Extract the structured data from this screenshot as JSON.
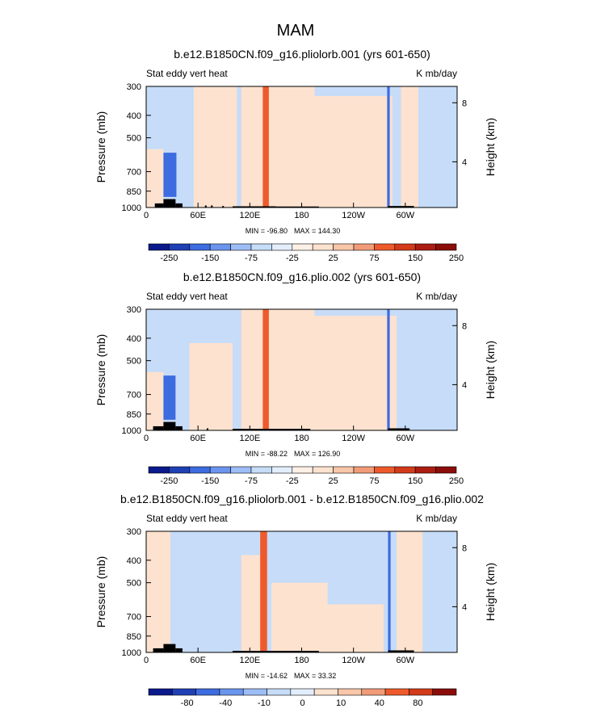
{
  "figure": {
    "season": "MAM",
    "colors": {
      "blue_dark": "#0a1a8c",
      "blue_mid": "#3d6be0",
      "blue_light": "#c6dcf8",
      "red_light": "#fde2cf",
      "red_mid": "#ee5a2c",
      "red_dark": "#8b0d0a",
      "land": "#000000"
    }
  },
  "chart_data": [
    {
      "type": "heatmap",
      "title": "b.e12.B1850CN.f09_g16.pliolorb.001 (yrs 601-650)",
      "left_label": "Stat eddy vert heat",
      "right_label": "K mb/day",
      "ylabel": "Pressure (mb)",
      "y2label": "Height (km)",
      "yticks": [
        "300",
        "400",
        "500",
        "700",
        "850",
        "1000"
      ],
      "y2ticks": [
        "8",
        "4"
      ],
      "xticks": [
        "0",
        "60E",
        "120E",
        "180",
        "120W",
        "60W"
      ],
      "xlim": [
        0,
        360
      ],
      "ylim": [
        1000,
        300
      ],
      "min_text": "MIN = -96.80",
      "max_text": "MAX = 144.30",
      "colorbar_labels": [
        "-250",
        "-150",
        "-75",
        "-25",
        "25",
        "75",
        "150",
        "250"
      ],
      "shading": [
        {
          "lon": [
            0,
            360
          ],
          "p": [
            300,
            1000
          ],
          "cls": "blue_light"
        },
        {
          "lon": [
            55,
            105
          ],
          "p": [
            300,
            1000
          ],
          "cls": "red_light"
        },
        {
          "lon": [
            110,
            195
          ],
          "p": [
            300,
            1000
          ],
          "cls": "red_light"
        },
        {
          "lon": [
            150,
            285
          ],
          "p": [
            330,
            1000
          ],
          "cls": "red_light"
        },
        {
          "lon": [
            295,
            315
          ],
          "p": [
            300,
            1000
          ],
          "cls": "red_light"
        },
        {
          "lon": [
            0,
            20
          ],
          "p": [
            560,
            1000
          ],
          "cls": "red_light"
        },
        {
          "lon": [
            20,
            35
          ],
          "p": [
            580,
            900
          ],
          "cls": "blue_mid"
        },
        {
          "lon": [
            135,
            142
          ],
          "p": [
            300,
            1000
          ],
          "cls": "red_mid"
        },
        {
          "lon": [
            279,
            282
          ],
          "p": [
            300,
            1000
          ],
          "cls": "blue_mid"
        }
      ],
      "land": [
        {
          "lon": [
            10,
            20
          ],
          "p": [
            960,
            1000
          ]
        },
        {
          "lon": [
            20,
            34
          ],
          "p": [
            920,
            1000
          ]
        },
        {
          "lon": [
            34,
            42
          ],
          "p": [
            960,
            1000
          ]
        },
        {
          "lon": [
            68,
            70
          ],
          "p": [
            980,
            1000
          ]
        },
        {
          "lon": [
            75,
            77
          ],
          "p": [
            980,
            1000
          ]
        },
        {
          "lon": [
            88,
            90
          ],
          "p": [
            985,
            1000
          ]
        },
        {
          "lon": [
            100,
            150
          ],
          "p": [
            988,
            1000
          ]
        },
        {
          "lon": [
            150,
            200
          ],
          "p": [
            990,
            1000
          ]
        },
        {
          "lon": [
            280,
            310
          ],
          "p": [
            985,
            1000
          ]
        }
      ]
    },
    {
      "type": "heatmap",
      "title": "b.e12.B1850CN.f09_g16.plio.002 (yrs 601-650)",
      "left_label": "Stat eddy vert heat",
      "right_label": "K mb/day",
      "ylabel": "Pressure (mb)",
      "y2label": "Height (km)",
      "yticks": [
        "300",
        "400",
        "500",
        "700",
        "850",
        "1000"
      ],
      "y2ticks": [
        "8",
        "4"
      ],
      "xticks": [
        "0",
        "60E",
        "120E",
        "180",
        "120W",
        "60W"
      ],
      "xlim": [
        0,
        360
      ],
      "ylim": [
        1000,
        300
      ],
      "min_text": "MIN = -88.22",
      "max_text": "MAX = 126.90",
      "colorbar_labels": [
        "-250",
        "-150",
        "-75",
        "-25",
        "25",
        "75",
        "150",
        "250"
      ],
      "shading": [
        {
          "lon": [
            0,
            360
          ],
          "p": [
            300,
            1000
          ],
          "cls": "blue_light"
        },
        {
          "lon": [
            50,
            100
          ],
          "p": [
            420,
            1000
          ],
          "cls": "red_light"
        },
        {
          "lon": [
            110,
            195
          ],
          "p": [
            300,
            1000
          ],
          "cls": "red_light"
        },
        {
          "lon": [
            160,
            290
          ],
          "p": [
            320,
            1000
          ],
          "cls": "red_light"
        },
        {
          "lon": [
            0,
            20
          ],
          "p": [
            560,
            1000
          ],
          "cls": "red_light"
        },
        {
          "lon": [
            20,
            34
          ],
          "p": [
            580,
            900
          ],
          "cls": "blue_mid"
        },
        {
          "lon": [
            135,
            142
          ],
          "p": [
            300,
            1000
          ],
          "cls": "red_mid"
        },
        {
          "lon": [
            279,
            282
          ],
          "p": [
            300,
            1000
          ],
          "cls": "blue_mid"
        }
      ],
      "land": [
        {
          "lon": [
            8,
            20
          ],
          "p": [
            960,
            1000
          ]
        },
        {
          "lon": [
            20,
            34
          ],
          "p": [
            920,
            1000
          ]
        },
        {
          "lon": [
            34,
            42
          ],
          "p": [
            960,
            1000
          ]
        },
        {
          "lon": [
            70,
            72
          ],
          "p": [
            980,
            1000
          ]
        },
        {
          "lon": [
            100,
            190
          ],
          "p": [
            985,
            1000
          ]
        },
        {
          "lon": [
            280,
            305
          ],
          "p": [
            980,
            1000
          ]
        }
      ]
    },
    {
      "type": "heatmap",
      "title": "b.e12.B1850CN.f09_g16.pliolorb.001 - b.e12.B1850CN.f09_g16.plio.002",
      "left_label": "Stat eddy vert heat",
      "right_label": "K mb/day",
      "ylabel": "Pressure (mb)",
      "y2label": "Height (km)",
      "yticks": [
        "300",
        "400",
        "500",
        "700",
        "850",
        "1000"
      ],
      "y2ticks": [
        "8",
        "4"
      ],
      "xticks": [
        "0",
        "60E",
        "120E",
        "180",
        "120W",
        "60W"
      ],
      "xlim": [
        0,
        360
      ],
      "ylim": [
        1000,
        300
      ],
      "min_text": "MIN = -14.62",
      "max_text": "MAX = 33.32",
      "colorbar_labels": [
        "-80",
        "-40",
        "-10",
        "0",
        "10",
        "40",
        "80"
      ],
      "shading": [
        {
          "lon": [
            0,
            360
          ],
          "p": [
            300,
            1000
          ],
          "cls": "blue_light"
        },
        {
          "lon": [
            0,
            28
          ],
          "p": [
            300,
            1000
          ],
          "cls": "red_light"
        },
        {
          "lon": [
            110,
            140
          ],
          "p": [
            380,
            1000
          ],
          "cls": "red_light"
        },
        {
          "lon": [
            145,
            210
          ],
          "p": [
            500,
            1000
          ],
          "cls": "red_light"
        },
        {
          "lon": [
            205,
            275
          ],
          "p": [
            620,
            1000
          ],
          "cls": "red_light"
        },
        {
          "lon": [
            290,
            320
          ],
          "p": [
            300,
            1000
          ],
          "cls": "red_light"
        },
        {
          "lon": [
            132,
            140
          ],
          "p": [
            300,
            1000
          ],
          "cls": "red_mid"
        },
        {
          "lon": [
            280,
            283
          ],
          "p": [
            300,
            1000
          ],
          "cls": "blue_mid"
        }
      ],
      "land": [
        {
          "lon": [
            8,
            20
          ],
          "p": [
            960,
            1000
          ]
        },
        {
          "lon": [
            20,
            34
          ],
          "p": [
            920,
            1000
          ]
        },
        {
          "lon": [
            34,
            42
          ],
          "p": [
            960,
            1000
          ]
        },
        {
          "lon": [
            100,
            200
          ],
          "p": [
            985,
            1000
          ]
        },
        {
          "lon": [
            280,
            310
          ],
          "p": [
            980,
            1000
          ]
        }
      ]
    }
  ]
}
